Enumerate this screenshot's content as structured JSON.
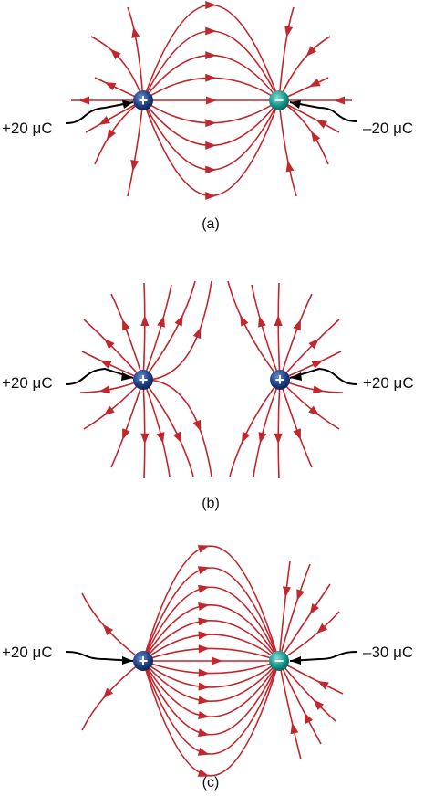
{
  "colors": {
    "field_line": "#c1272d",
    "positive_charge": "#1c3f82",
    "negative_charge": "#17968a",
    "pointer": "#000000",
    "text": "#111111"
  },
  "panels": [
    {
      "id": "a",
      "caption": "(a)",
      "left_charge": {
        "sign": "+",
        "label": "+20 μC"
      },
      "right_charge": {
        "sign": "−",
        "label": "–20 μC"
      }
    },
    {
      "id": "b",
      "caption": "(b)",
      "left_charge": {
        "sign": "+",
        "label": "+20 μC"
      },
      "right_charge": {
        "sign": "+",
        "label": "+20 μC"
      }
    },
    {
      "id": "c",
      "caption": "(c)",
      "left_charge": {
        "sign": "+",
        "label": "+20 μC"
      },
      "right_charge": {
        "sign": "−",
        "label": "–30 μC"
      }
    }
  ]
}
